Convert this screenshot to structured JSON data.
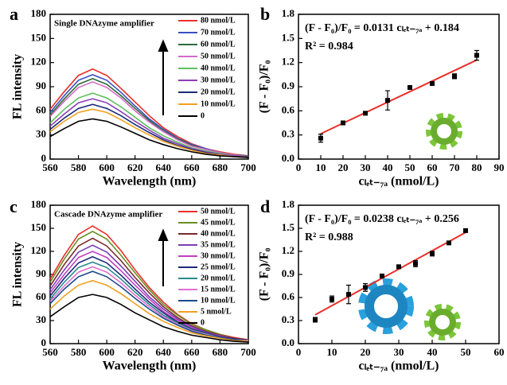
{
  "chart_data": [
    {
      "type": "line",
      "panel_label": "a",
      "inset_title": "Single DNAzyme amplifier",
      "x_label": "Wavelength (nm)",
      "y_label": "FL intensity",
      "x": [
        560,
        570,
        580,
        590,
        600,
        610,
        620,
        630,
        640,
        650,
        660,
        670,
        680,
        690,
        700
      ],
      "xlim": [
        560,
        700
      ],
      "xticks": [
        560,
        580,
        600,
        620,
        640,
        660,
        680,
        700
      ],
      "ylim": [
        0,
        180
      ],
      "yticks": [
        0,
        30,
        60,
        90,
        120,
        150,
        180
      ],
      "grid": false,
      "series": [
        {
          "name": "80 nmol/L",
          "color": "#e8302a",
          "values": [
            62,
            84,
            104,
            112,
            104,
            88,
            71,
            54,
            39,
            28,
            19,
            13,
            9,
            6,
            4
          ]
        },
        {
          "name": "70 nmol/L",
          "color": "#3a4fc2",
          "values": [
            58,
            79,
            98,
            105,
            98,
            83,
            66,
            50,
            37,
            26,
            18,
            13,
            8,
            5,
            4
          ]
        },
        {
          "name": "60 nmol/L",
          "color": "#2e6b3a",
          "values": [
            55,
            75,
            93,
            100,
            93,
            79,
            63,
            48,
            35,
            25,
            17,
            12,
            8,
            5,
            4
          ]
        },
        {
          "name": "50 nmol/L",
          "color": "#d46bc8",
          "values": [
            53,
            72,
            89,
            96,
            89,
            76,
            60,
            46,
            34,
            24,
            16,
            12,
            8,
            5,
            3
          ]
        },
        {
          "name": "40 nmol/L",
          "color": "#5fbf5f",
          "values": [
            45,
            62,
            76,
            82,
            76,
            65,
            52,
            39,
            29,
            21,
            14,
            10,
            7,
            4,
            3
          ]
        },
        {
          "name": "30 nmol/L",
          "color": "#8a3fb5",
          "values": [
            41,
            56,
            70,
            75,
            70,
            59,
            47,
            36,
            26,
            19,
            13,
            9,
            6,
            4,
            3
          ]
        },
        {
          "name": "20 nmol/L",
          "color": "#1c2a7a",
          "values": [
            37,
            51,
            63,
            68,
            63,
            54,
            43,
            33,
            24,
            17,
            12,
            8,
            5,
            3,
            2
          ]
        },
        {
          "name": "10 nmol/L",
          "color": "#f0a020",
          "values": [
            34,
            47,
            58,
            62,
            58,
            49,
            39,
            30,
            22,
            16,
            11,
            7,
            5,
            3,
            2
          ]
        },
        {
          "name": "0",
          "color": "#000000",
          "values": [
            28,
            38,
            47,
            50,
            47,
            40,
            32,
            24,
            18,
            13,
            9,
            6,
            4,
            3,
            2
          ]
        }
      ]
    },
    {
      "type": "scatter",
      "panel_label": "b",
      "x_label": "cₗₑₜ₋₇ₐ (nmol/L)",
      "y_label": "(F - F₀)/F₀",
      "annotations": [
        "(F - F₀)/F₀ = 0.0131 cₗₑₜ₋₇ₐ + 0.184",
        "R² = 0.984"
      ],
      "x": [
        10,
        20,
        30,
        40,
        50,
        60,
        70,
        80
      ],
      "values": [
        0.26,
        0.45,
        0.57,
        0.73,
        0.89,
        0.94,
        1.03,
        1.29
      ],
      "errors": [
        0.05,
        0.01,
        0.01,
        0.12,
        0.01,
        0.01,
        0.03,
        0.06
      ],
      "color": "#000000",
      "fit": {
        "x": [
          10,
          80
        ],
        "values": [
          0.315,
          1.232
        ],
        "color": "#e8302a"
      },
      "xlim": [
        0,
        90
      ],
      "xticks": [
        0,
        10,
        20,
        30,
        40,
        50,
        60,
        70,
        80,
        90
      ],
      "ylim": [
        0,
        1.8
      ],
      "yticks": [
        {
          "value": 0,
          "label": "0.0"
        },
        0.3,
        0.6,
        0.9,
        1.2,
        1.5,
        1.8
      ],
      "grid": false
    },
    {
      "type": "line",
      "panel_label": "c",
      "inset_title": "Cascade DNAzyme amplifier",
      "x_label": "Wavelength (nm)",
      "y_label": "FL intensity",
      "x": [
        560,
        570,
        580,
        590,
        600,
        610,
        620,
        630,
        640,
        650,
        660,
        670,
        680,
        690,
        700
      ],
      "xlim": [
        560,
        700
      ],
      "xticks": [
        560,
        580,
        600,
        620,
        640,
        660,
        680,
        700
      ],
      "ylim": [
        0,
        180
      ],
      "yticks": [
        0,
        30,
        60,
        90,
        120,
        150,
        180
      ],
      "grid": false,
      "series": [
        {
          "name": "50 nmol/L",
          "color": "#e8302a",
          "values": [
            84,
            115,
            142,
            153,
            142,
            121,
            96,
            73,
            54,
            38,
            26,
            18,
            12,
            8,
            5
          ]
        },
        {
          "name": "45 nmol/L",
          "color": "#6b8e23",
          "values": [
            80,
            110,
            136,
            146,
            136,
            115,
            92,
            70,
            51,
            37,
            25,
            18,
            12,
            7,
            5
          ]
        },
        {
          "name": "40 nmol/L",
          "color": "#7a2a2a",
          "values": [
            75,
            103,
            127,
            137,
            127,
            108,
            86,
            66,
            48,
            34,
            23,
            16,
            11,
            7,
            5
          ]
        },
        {
          "name": "35 nmol/L",
          "color": "#7a3fb5",
          "values": [
            70,
            96,
            119,
            128,
            119,
            101,
            81,
            61,
            45,
            32,
            22,
            15,
            10,
            6,
            4
          ]
        },
        {
          "name": "30 nmol/L",
          "color": "#c040c0",
          "values": [
            66,
            90,
            112,
            120,
            112,
            95,
            76,
            58,
            42,
            30,
            20,
            14,
            10,
            6,
            4
          ]
        },
        {
          "name": "25 nmol/L",
          "color": "#1c2a7a",
          "values": [
            62,
            85,
            105,
            113,
            105,
            89,
            71,
            54,
            40,
            28,
            19,
            14,
            9,
            6,
            4
          ]
        },
        {
          "name": "20 nmol/L",
          "color": "#2a8a8a",
          "values": [
            58,
            80,
            99,
            106,
            99,
            84,
            67,
            51,
            37,
            27,
            18,
            13,
            8,
            5,
            4
          ]
        },
        {
          "name": "15 nmol/L",
          "color": "#e070d0",
          "values": [
            55,
            75,
            93,
            100,
            93,
            79,
            63,
            48,
            35,
            25,
            17,
            12,
            8,
            5,
            4
          ]
        },
        {
          "name": "10 nmol/L",
          "color": "#1a4a8a",
          "values": [
            52,
            71,
            87,
            94,
            87,
            74,
            59,
            45,
            33,
            24,
            16,
            11,
            8,
            5,
            3
          ]
        },
        {
          "name": "5 nmol/L",
          "color": "#f0a020",
          "values": [
            45,
            62,
            76,
            82,
            76,
            65,
            52,
            39,
            29,
            21,
            14,
            10,
            7,
            4,
            3
          ]
        },
        {
          "name": "0",
          "color": "#000000",
          "values": [
            35,
            48,
            60,
            64,
            60,
            51,
            40,
            31,
            22,
            16,
            11,
            8,
            5,
            3,
            2
          ]
        }
      ]
    },
    {
      "type": "scatter",
      "panel_label": "d",
      "x_label": "cₗₑₜ₋₇ₐ (nmol/L)",
      "y_label": "(F - F₀)/F₀",
      "annotations": [
        "(F - F₀)/F₀ = 0.0238 cₗₑₜ₋₇ₐ + 0.256",
        "R² = 0.988"
      ],
      "x": [
        5,
        10,
        15,
        20,
        25,
        30,
        35,
        40,
        45,
        50
      ],
      "values": [
        0.31,
        0.58,
        0.64,
        0.73,
        0.88,
        1.0,
        1.04,
        1.17,
        1.31,
        1.47
      ],
      "errors": [
        0.03,
        0.04,
        0.12,
        0.05,
        0.01,
        0.02,
        0.04,
        0.03,
        0.02,
        0.01
      ],
      "color": "#000000",
      "fit": {
        "x": [
          5,
          50
        ],
        "values": [
          0.375,
          1.446
        ],
        "color": "#e8302a"
      },
      "xlim": [
        0,
        60
      ],
      "xticks": [
        0,
        10,
        20,
        30,
        40,
        50,
        60
      ],
      "ylim": [
        0,
        1.8
      ],
      "yticks": [
        {
          "value": 0,
          "label": "0.0"
        },
        0.3,
        0.6,
        0.9,
        1.2,
        1.5,
        1.8
      ],
      "grid": false
    }
  ]
}
